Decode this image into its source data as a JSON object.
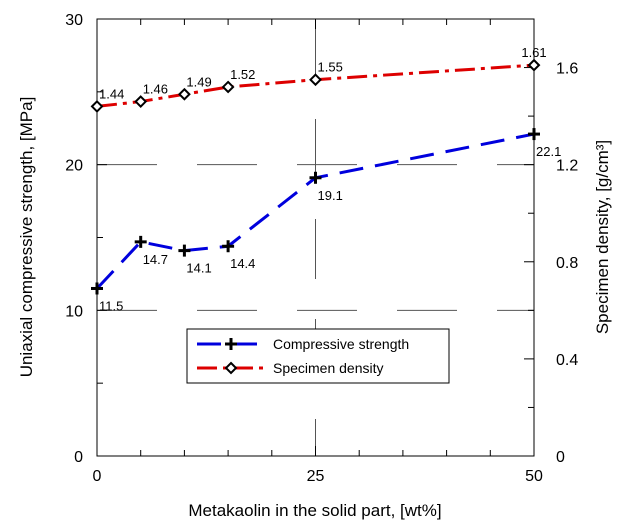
{
  "chart_data": {
    "type": "line",
    "xlabel": "Metakaolin in the solid part, [wt%]",
    "ylabel": "Uniaxial compressive strength, [MPa]",
    "y2label": "Specimen density, [g/cm³]",
    "xlim": [
      0,
      50
    ],
    "ylim": [
      0,
      30
    ],
    "y2lim": [
      0,
      1.8
    ],
    "x_ticks": [
      "0",
      "25",
      "50"
    ],
    "y_ticks": [
      "0",
      "10",
      "20",
      "30"
    ],
    "y2_ticks": [
      "0",
      "0.4",
      "0.8",
      "1.2",
      "1.6"
    ],
    "grid": true,
    "legend_position": "center-right",
    "series": [
      {
        "name": "Compressive strength",
        "axis": "left",
        "color": "#0000dd",
        "line_style": "dashed",
        "marker": "plus",
        "x": [
          0,
          5,
          10,
          15,
          25,
          50
        ],
        "values": [
          11.5,
          14.7,
          14.1,
          14.4,
          19.1,
          22.1
        ],
        "labels": [
          "11.5",
          "14.7",
          "14.1",
          "14.4",
          "19.1",
          "22.1"
        ]
      },
      {
        "name": "Specimen density",
        "axis": "right",
        "color": "#dd0000",
        "line_style": "dash-dot",
        "marker": "diamond",
        "x": [
          0,
          5,
          10,
          15,
          25,
          50
        ],
        "values": [
          1.44,
          1.46,
          1.49,
          1.52,
          1.55,
          1.61
        ],
        "labels": [
          "1.44",
          "1.46",
          "1.49",
          "1.52",
          "1.55",
          "1.61"
        ]
      }
    ]
  }
}
